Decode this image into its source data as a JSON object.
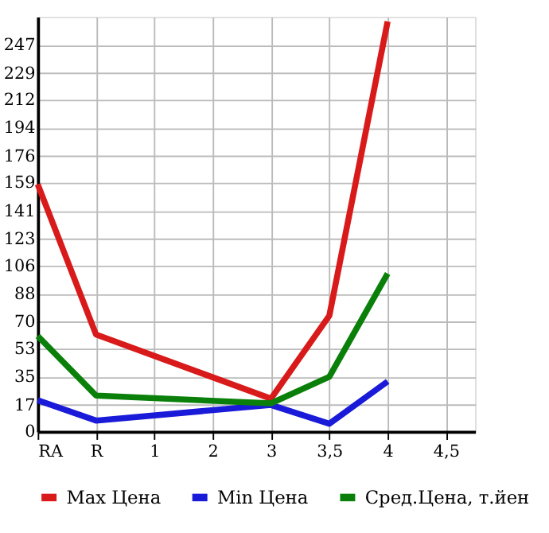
{
  "chart_data": {
    "type": "line",
    "categories": [
      "RA",
      "R",
      "1",
      "2",
      "3",
      "3,5",
      "4",
      "4,5"
    ],
    "series": [
      {
        "name": "Max Цена",
        "color": "#d91a1a",
        "values": [
          158,
          62,
          null,
          null,
          21,
          74,
          262,
          null
        ]
      },
      {
        "name": "Min Цена",
        "color": "#1a1ad9",
        "values": [
          20,
          7,
          null,
          null,
          17,
          5,
          32,
          null
        ]
      },
      {
        "name": "Сред.Цена, т.йен",
        "color": "#0a800a",
        "values": [
          61,
          23,
          null,
          null,
          18,
          35,
          101,
          null
        ]
      }
    ],
    "ylim": [
      0,
      265
    ],
    "yticks": [
      0,
      17,
      35,
      53,
      70,
      88,
      106,
      123,
      141,
      159,
      176,
      194,
      212,
      229,
      247
    ],
    "grid": true,
    "legend": "bottom",
    "marker": "none",
    "line_style": "solid"
  }
}
